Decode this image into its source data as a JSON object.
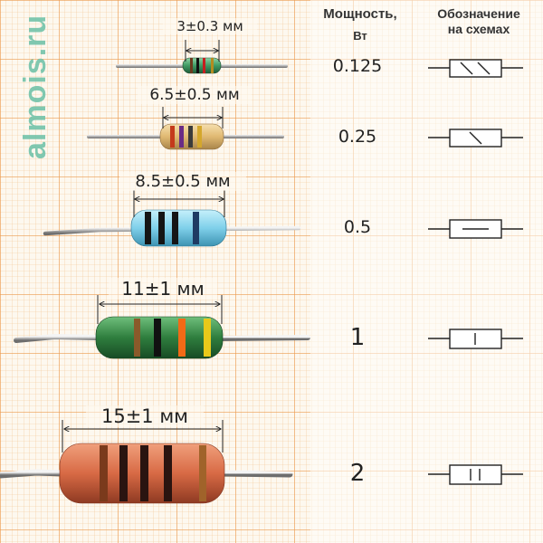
{
  "watermark": "almois.ru",
  "headers": {
    "power_line1": "Мощность,",
    "power_line2": "Вт",
    "symbol_line1": "Обозначение",
    "symbol_line2": "на схемах"
  },
  "resistors": [
    {
      "power": "0.125",
      "size": "3±0.3 мм",
      "symbol_marks": "\\\\"
    },
    {
      "power": "0.25",
      "size": "6.5±0.5 мм",
      "symbol_marks": "\\"
    },
    {
      "power": "0.5",
      "size": "8.5±0.5 мм",
      "symbol_marks": "—"
    },
    {
      "power": "1",
      "size": "11±1 мм",
      "symbol_marks": "I"
    },
    {
      "power": "2",
      "size": "15±1 мм",
      "symbol_marks": "II"
    }
  ],
  "colors": {
    "paper": "#fdf8ef",
    "grid_minor": "#f2c38f",
    "grid_major": "#ec9b4f",
    "watermark": "#73c3aa"
  }
}
